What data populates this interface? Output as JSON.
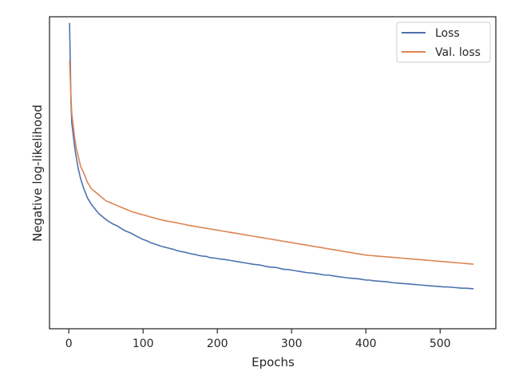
{
  "chart_data": {
    "type": "line",
    "xlabel": "Epochs",
    "ylabel": "Negative log-likelihood",
    "xlim": [
      -26,
      575
    ],
    "ylim": [
      0.0,
      1.0
    ],
    "x_ticks": [
      0,
      100,
      200,
      300,
      400,
      500
    ],
    "y_ticks_shown": false,
    "grid": false,
    "legend_position": "top-right",
    "series": [
      {
        "name": "Loss",
        "color": "#4c72b0",
        "x": [
          1,
          2,
          3,
          4,
          6,
          8,
          10,
          13,
          16,
          20,
          25,
          30,
          35,
          40,
          45,
          50,
          55,
          60,
          65,
          70,
          75,
          80,
          85,
          90,
          95,
          100,
          105,
          110,
          115,
          120,
          125,
          130,
          135,
          140,
          145,
          150,
          155,
          160,
          165,
          170,
          175,
          180,
          185,
          190,
          195,
          200,
          205,
          210,
          215,
          220,
          225,
          230,
          235,
          240,
          245,
          250,
          255,
          260,
          265,
          270,
          275,
          280,
          285,
          290,
          295,
          300,
          305,
          310,
          315,
          320,
          325,
          330,
          335,
          340,
          345,
          350,
          355,
          360,
          365,
          370,
          375,
          380,
          385,
          390,
          395,
          400,
          405,
          410,
          415,
          420,
          425,
          430,
          435,
          440,
          445,
          450,
          455,
          460,
          465,
          470,
          475,
          480,
          485,
          490,
          495,
          500,
          505,
          510,
          515,
          520,
          525,
          530,
          535,
          540,
          545
        ],
        "values": [
          0.98,
          0.85,
          0.72,
          0.66,
          0.62,
          0.58,
          0.55,
          0.51,
          0.48,
          0.45,
          0.42,
          0.4,
          0.385,
          0.37,
          0.36,
          0.35,
          0.342,
          0.335,
          0.33,
          0.322,
          0.315,
          0.31,
          0.305,
          0.298,
          0.292,
          0.286,
          0.282,
          0.276,
          0.272,
          0.268,
          0.264,
          0.261,
          0.258,
          0.255,
          0.251,
          0.248,
          0.246,
          0.243,
          0.24,
          0.238,
          0.235,
          0.233,
          0.232,
          0.228,
          0.227,
          0.225,
          0.223,
          0.222,
          0.22,
          0.218,
          0.216,
          0.214,
          0.212,
          0.21,
          0.208,
          0.206,
          0.205,
          0.203,
          0.2,
          0.198,
          0.197,
          0.196,
          0.193,
          0.19,
          0.19,
          0.188,
          0.186,
          0.184,
          0.182,
          0.18,
          0.179,
          0.178,
          0.176,
          0.174,
          0.172,
          0.172,
          0.17,
          0.168,
          0.166,
          0.165,
          0.163,
          0.162,
          0.161,
          0.16,
          0.158,
          0.156,
          0.156,
          0.154,
          0.153,
          0.152,
          0.151,
          0.15,
          0.148,
          0.147,
          0.146,
          0.145,
          0.144,
          0.143,
          0.142,
          0.141,
          0.14,
          0.139,
          0.138,
          0.137,
          0.136,
          0.135,
          0.134,
          0.134,
          0.133,
          0.132,
          0.131,
          0.13,
          0.13,
          0.129,
          0.128
        ]
      },
      {
        "name": "Val. loss",
        "color": "#dd8452",
        "x": [
          1,
          2,
          3,
          4,
          6,
          8,
          10,
          13,
          16,
          20,
          25,
          30,
          35,
          40,
          45,
          50,
          55,
          60,
          65,
          70,
          75,
          80,
          85,
          90,
          95,
          100,
          105,
          110,
          115,
          120,
          125,
          130,
          135,
          140,
          145,
          150,
          155,
          160,
          165,
          170,
          175,
          180,
          185,
          190,
          195,
          200,
          205,
          210,
          215,
          220,
          225,
          230,
          235,
          240,
          245,
          250,
          255,
          260,
          265,
          270,
          275,
          280,
          285,
          290,
          295,
          300,
          305,
          310,
          315,
          320,
          325,
          330,
          335,
          340,
          345,
          350,
          355,
          360,
          365,
          370,
          375,
          380,
          385,
          390,
          395,
          400,
          405,
          410,
          415,
          420,
          425,
          430,
          435,
          440,
          445,
          450,
          455,
          460,
          465,
          470,
          475,
          480,
          485,
          490,
          495,
          500,
          505,
          510,
          515,
          520,
          525,
          530,
          535,
          540,
          545
        ],
        "values": [
          0.86,
          0.8,
          0.74,
          0.69,
          0.65,
          0.61,
          0.58,
          0.55,
          0.52,
          0.5,
          0.47,
          0.45,
          0.44,
          0.43,
          0.42,
          0.41,
          0.405,
          0.4,
          0.395,
          0.39,
          0.385,
          0.38,
          0.375,
          0.372,
          0.368,
          0.365,
          0.362,
          0.358,
          0.355,
          0.352,
          0.349,
          0.346,
          0.344,
          0.342,
          0.34,
          0.337,
          0.335,
          0.332,
          0.33,
          0.328,
          0.326,
          0.324,
          0.322,
          0.32,
          0.318,
          0.316,
          0.314,
          0.312,
          0.31,
          0.308,
          0.306,
          0.304,
          0.302,
          0.3,
          0.298,
          0.296,
          0.294,
          0.292,
          0.29,
          0.288,
          0.286,
          0.284,
          0.282,
          0.28,
          0.278,
          0.276,
          0.274,
          0.272,
          0.27,
          0.268,
          0.266,
          0.264,
          0.262,
          0.26,
          0.258,
          0.256,
          0.254,
          0.252,
          0.25,
          0.248,
          0.246,
          0.244,
          0.242,
          0.24,
          0.238,
          0.236,
          0.235,
          0.234,
          0.233,
          0.232,
          0.231,
          0.23,
          0.229,
          0.228,
          0.227,
          0.226,
          0.225,
          0.224,
          0.223,
          0.222,
          0.221,
          0.22,
          0.219,
          0.218,
          0.217,
          0.216,
          0.215,
          0.214,
          0.213,
          0.212,
          0.211,
          0.21,
          0.209,
          0.208,
          0.207
        ]
      }
    ]
  }
}
